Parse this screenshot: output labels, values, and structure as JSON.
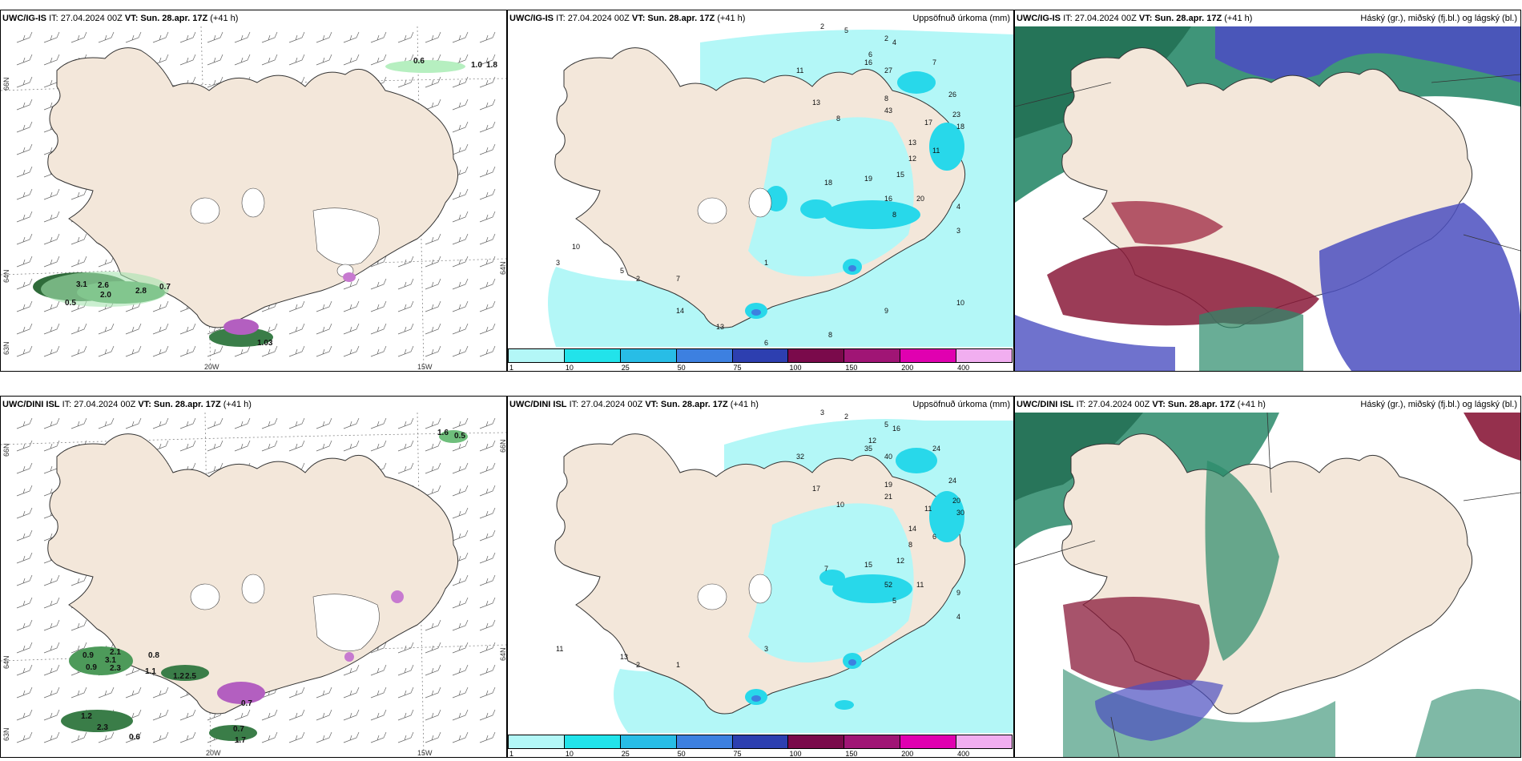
{
  "panels": [
    {
      "model": "UWC/IG-IS",
      "it": "IT: 27.04.2024 00Z",
      "vt_label": "VT:",
      "vt": "Sun. 28.apr. 17Z",
      "lead": "(+41 h)",
      "right_title": ""
    },
    {
      "model": "UWC/IG-IS",
      "it": "IT: 27.04.2024 00Z",
      "vt_label": "VT:",
      "vt": "Sun. 28.apr. 17Z",
      "lead": "(+41 h)",
      "right_title": "Uppsöfnuð úrkoma (mm)"
    },
    {
      "model": "UWC/IG-IS",
      "it": "IT: 27.04.2024 00Z",
      "vt_label": "VT:",
      "vt": "Sun. 28.apr. 17Z",
      "lead": "(+41 h)",
      "right_title": "Háský (gr.), miðský (fj.bl.) og lágský (bl.)"
    },
    {
      "model": "UWC/DINI ISL",
      "it": "IT: 27.04.2024 00Z",
      "vt_label": "VT:",
      "vt": "Sun. 28.apr. 17Z",
      "lead": "(+41 h)",
      "right_title": ""
    },
    {
      "model": "UWC/DINI ISL",
      "it": "IT: 27.04.2024 00Z",
      "vt_label": "VT:",
      "vt": "Sun. 28.apr. 17Z",
      "lead": "(+41 h)",
      "right_title": "Uppsöfnuð úrkoma (mm)"
    },
    {
      "model": "UWC/DINI ISL",
      "it": "IT: 27.04.2024 00Z",
      "vt_label": "VT:",
      "vt": "Sun. 28.apr. 17Z",
      "lead": "(+41 h)",
      "right_title": "Háský (gr.), miðský (fj.bl.) og lágský (bl.)"
    }
  ],
  "axes": {
    "lon_20": "20W",
    "lon_15": "15W",
    "lat_66": "66N",
    "lat_64": "64N",
    "lat_63": "63N"
  },
  "colorbar": {
    "ticks": [
      "1",
      "10",
      "25",
      "50",
      "75",
      "100",
      "150",
      "200",
      "400"
    ],
    "colors": [
      "#b3f7f7",
      "#22e3ea",
      "#28bde6",
      "#3d80e0",
      "#2d3fb0",
      "#7a0a4b",
      "#a01575",
      "#e000b0",
      "#f1aef0"
    ]
  },
  "colors": {
    "land": "#f3e7da",
    "precip_light": "#b3f7f7",
    "precip_mid": "#28d8ea",
    "cloud_high": "#2aa77a",
    "cloud_mid": "#8a1a3a",
    "cloud_low": "#4b4fc0"
  },
  "top_left_values": [
    "0.6",
    "1.0",
    "1.8",
    "3.1",
    "2.6",
    "2.8",
    "2.0",
    "0.7",
    "0.5",
    "1.03"
  ],
  "bottom_left_values": [
    "1.6",
    "0.5",
    "0.9",
    "0.9",
    "2.1",
    "3.1",
    "2.3",
    "0.8",
    "1.1",
    "1.2",
    "2.5",
    "1.2",
    "2.3",
    "0.6",
    "0.7",
    "1.7",
    "0.7"
  ],
  "top_mid_values": [
    "2",
    "5",
    "2",
    "4",
    "7",
    "6",
    "27",
    "16",
    "13",
    "11",
    "8",
    "43",
    "26",
    "23",
    "18",
    "17",
    "13",
    "8",
    "18",
    "19",
    "15",
    "16",
    "20",
    "4",
    "12",
    "11",
    "8",
    "3",
    "1",
    "2",
    "7",
    "5",
    "3",
    "10",
    "14",
    "6",
    "8",
    "9",
    "10",
    "13"
  ],
  "bottom_mid_values": [
    "3",
    "2",
    "5",
    "16",
    "24",
    "12",
    "40",
    "35",
    "17",
    "32",
    "19",
    "21",
    "24",
    "20",
    "30",
    "11",
    "14",
    "10",
    "7",
    "15",
    "12",
    "52",
    "11",
    "9",
    "8",
    "6",
    "5",
    "4",
    "3",
    "2",
    "1",
    "13",
    "11"
  ]
}
